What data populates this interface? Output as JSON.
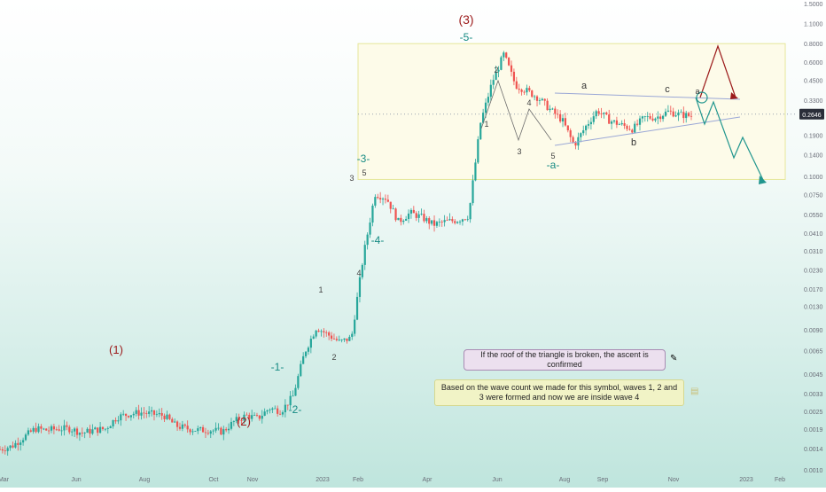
{
  "chart_data": {
    "type": "candlestick",
    "scale": "log",
    "price_axis": {
      "ticks": [
        "1.5000",
        "1.1000",
        "0.8000",
        "0.6000",
        "0.4500",
        "0.3300",
        "0.2600",
        "0.1900",
        "0.1400",
        "0.1000",
        "0.0750",
        "0.0550",
        "0.0410",
        "0.0310",
        "0.0230",
        "0.0170",
        "0.0130",
        "0.0090",
        "0.0065",
        "0.0045",
        "0.0033",
        "0.0025",
        "0.0019",
        "0.0014",
        "0.0010"
      ],
      "current_price": "0.2646",
      "current_color": "#2a2e39"
    },
    "time_axis": [
      "Mar",
      "Jun",
      "Aug",
      "Oct",
      "Nov",
      "2023",
      "Feb",
      "Apr",
      "Jun",
      "Aug",
      "Sep",
      "Nov",
      "2023",
      "Feb"
    ],
    "wave_labels": {
      "major": [
        "(1)",
        "(2)",
        "(3)"
      ],
      "minor_1": "-1-",
      "minor_2": "-2-",
      "minor_3": "-3-",
      "minor_4": "-4-",
      "minor_5": "-5-",
      "minor_a": "-a-",
      "sub": [
        "1",
        "2",
        "3",
        "4",
        "5",
        "1",
        "2",
        "3",
        "4",
        "5",
        "a",
        "b",
        "c",
        "a"
      ]
    },
    "annotations": [
      "If the roof of the triangle is broken, the ascent is confirmed",
      "Based on the wave count we made for this symbol, waves 1, 2 and 3 were formed and now we are inside wave 4"
    ],
    "price_path_log10": [
      -2.86,
      -2.84,
      -2.78,
      -2.72,
      -2.73,
      -2.72,
      -2.72,
      -2.75,
      -2.73,
      -2.72,
      -2.64,
      -2.62,
      -2.61,
      -2.62,
      -2.63,
      -2.7,
      -2.72,
      -2.73,
      -2.73,
      -2.74,
      -2.67,
      -2.63,
      -2.65,
      -2.58,
      -2.6,
      -2.5,
      -2.2,
      -2.03,
      -2.08,
      -2.13,
      -2.1,
      -1.55,
      -1.12,
      -1.15,
      -1.31,
      -1.25,
      -1.28,
      -1.33,
      -1.31,
      -1.3,
      -1.27,
      -0.64,
      -0.36,
      -0.17,
      -0.38,
      -0.42,
      -0.47,
      -0.55,
      -0.62,
      -0.79,
      -0.66,
      -0.55,
      -0.62,
      -0.65,
      -0.68,
      -0.6,
      -0.6,
      -0.56,
      -0.58,
      -0.59
    ],
    "colors": {
      "up": "#26a69a",
      "down": "#ef5350",
      "wave_major": "#9c1b1b",
      "wave_minor": "#158a83",
      "bull_arrow": "#9c1b1b",
      "bear_arrow": "#21968e",
      "box_border": "#e6e79a",
      "box_fill": "#fdfbe9",
      "triangle_line": "#9aa7d6"
    }
  }
}
